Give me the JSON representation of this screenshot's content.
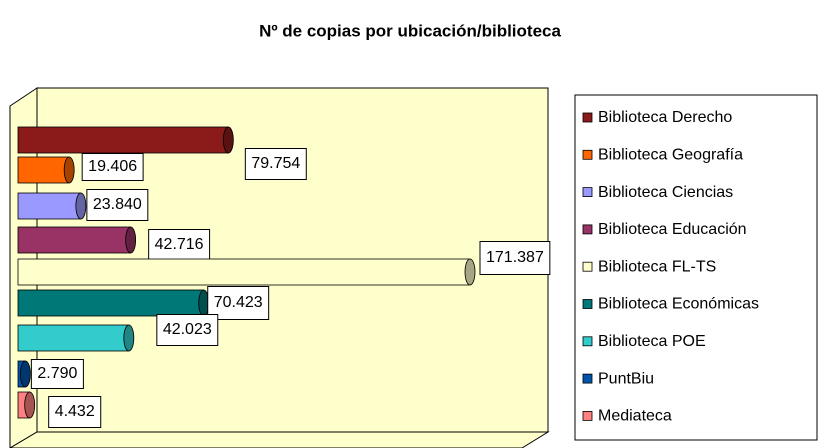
{
  "chart_data": {
    "type": "bar",
    "orientation": "horizontal",
    "title": "Nº de copias por ubicación/biblioteca",
    "series": [
      {
        "name": "Biblioteca Derecho",
        "color": "#8b1a1a",
        "values": [
          79754
        ],
        "value_labels": [
          "79.754"
        ]
      },
      {
        "name": "Biblioteca Geografía",
        "color": "#ff6600",
        "values": [
          19406
        ],
        "value_labels": [
          "19.406"
        ]
      },
      {
        "name": "Biblioteca Ciencias",
        "color": "#9999ff",
        "values": [
          23840
        ],
        "value_labels": [
          "23.840"
        ]
      },
      {
        "name": "Biblioteca Educación",
        "color": "#993366",
        "values": [
          42716
        ],
        "value_labels": [
          "42.716"
        ]
      },
      {
        "name": "Biblioteca FL-TS",
        "color": "#ffffcc",
        "values": [
          171387
        ],
        "value_labels": [
          "171.387"
        ]
      },
      {
        "name": "Biblioteca Económicas",
        "color": "#007878",
        "values": [
          70423
        ],
        "value_labels": [
          "70.423"
        ]
      },
      {
        "name": "Biblioteca POE",
        "color": "#33cccc",
        "values": [
          42023
        ],
        "value_labels": [
          "42.023"
        ]
      },
      {
        "name": "PuntBiu",
        "color": "#0055aa",
        "values": [
          2790
        ],
        "value_labels": [
          "2.790"
        ]
      },
      {
        "name": "Mediateca",
        "color": "#ff8080",
        "values": [
          4432
        ],
        "value_labels": [
          "4.432"
        ]
      }
    ],
    "legend": "right"
  }
}
